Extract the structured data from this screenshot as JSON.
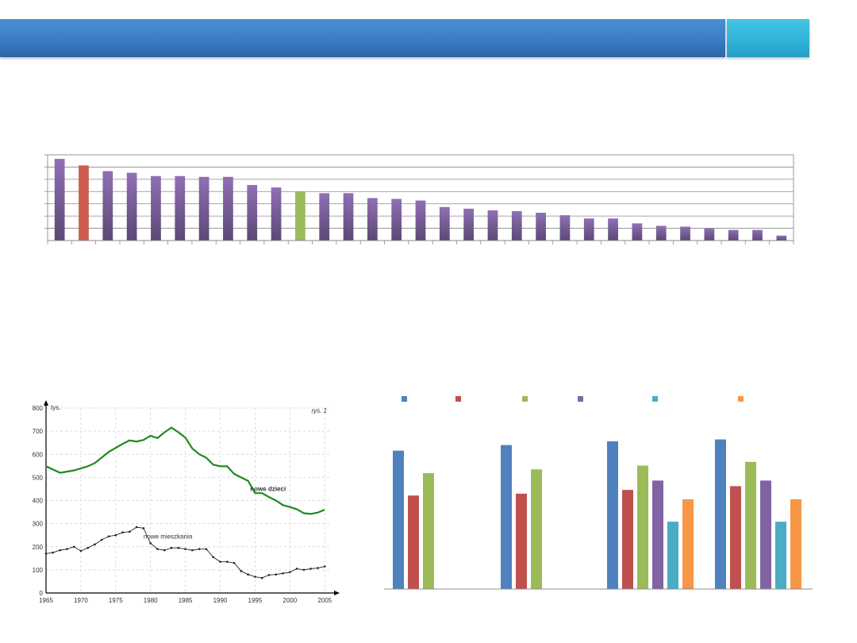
{
  "colors": {
    "banner": "#3a7cc4",
    "banner_accent": "#2fb2d8"
  },
  "chart_data": [
    {
      "type": "bar",
      "values": [
        100,
        92,
        85,
        83,
        79,
        79,
        78,
        78,
        68,
        65,
        60,
        58,
        58,
        52,
        51,
        49,
        41,
        39,
        37,
        36,
        34,
        31,
        27,
        27,
        21,
        18,
        17,
        15,
        13,
        13,
        6
      ],
      "highlight": {
        "1": "#cd5b52",
        "10": "#9bbb59"
      },
      "color": "#8064a2",
      "ylim": [
        0,
        105
      ],
      "grid": true
    },
    {
      "type": "line",
      "xticks": [
        "1965",
        "1970",
        "1975",
        "1980",
        "1985",
        "1990",
        "1995",
        "2000",
        "2005"
      ],
      "yticks": [
        "0",
        "100",
        "200",
        "300",
        "400",
        "500",
        "600",
        "700",
        "800"
      ],
      "xlim": [
        1965,
        2006
      ],
      "ylim": [
        0,
        800
      ],
      "unit_label": "tys.",
      "fig_label": "rys. 1",
      "series": [
        {
          "name": "nowe dzieci",
          "color": "#1f8a1f",
          "x": [
            1965,
            1967,
            1969,
            1971,
            1972,
            1974,
            1976,
            1977,
            1978,
            1979,
            1980,
            1981,
            1982,
            1983,
            1984,
            1985,
            1986,
            1987,
            1988,
            1989,
            1990,
            1991,
            1992,
            1993,
            1994,
            1995,
            1996,
            1997,
            1998,
            1999,
            2000,
            2001,
            2002,
            2003,
            2004,
            2005
          ],
          "y": [
            548,
            520,
            530,
            548,
            562,
            610,
            645,
            660,
            655,
            662,
            680,
            670,
            695,
            715,
            695,
            672,
            625,
            600,
            585,
            555,
            548,
            548,
            515,
            500,
            485,
            432,
            432,
            415,
            400,
            380,
            372,
            362,
            345,
            342,
            348,
            360
          ]
        },
        {
          "name": "nowe mieszkania",
          "color": "#222222",
          "x": [
            1965,
            1966,
            1967,
            1968,
            1969,
            1970,
            1971,
            1972,
            1973,
            1974,
            1975,
            1976,
            1977,
            1978,
            1979,
            1980,
            1981,
            1982,
            1983,
            1984,
            1985,
            1986,
            1987,
            1988,
            1989,
            1990,
            1991,
            1992,
            1993,
            1994,
            1995,
            1996,
            1997,
            1998,
            1999,
            2000,
            2001,
            2002,
            2003,
            2004,
            2005
          ],
          "y": [
            170,
            175,
            185,
            190,
            200,
            182,
            195,
            210,
            230,
            245,
            250,
            262,
            265,
            285,
            280,
            215,
            190,
            185,
            195,
            195,
            190,
            185,
            190,
            190,
            155,
            135,
            135,
            130,
            95,
            80,
            70,
            65,
            78,
            80,
            85,
            90,
            105,
            100,
            105,
            108,
            115
          ]
        }
      ]
    },
    {
      "type": "bar",
      "groups": 4,
      "series": [
        {
          "color": "#4f81bd",
          "values": [
            7.4,
            7.7,
            7.9,
            8.0
          ]
        },
        {
          "color": "#c0504d",
          "values": [
            5.0,
            5.1,
            5.3,
            5.5
          ]
        },
        {
          "color": "#9bbb59",
          "values": [
            6.2,
            6.4,
            6.6,
            6.8
          ]
        },
        {
          "color": "#8064a2",
          "values": [
            null,
            null,
            5.8,
            5.8
          ]
        },
        {
          "color": "#4bacc6",
          "values": [
            null,
            null,
            3.6,
            3.6
          ]
        },
        {
          "color": "#f79646",
          "values": [
            null,
            null,
            4.8,
            4.8
          ]
        }
      ],
      "ylim": [
        0,
        9
      ],
      "legend": "top"
    }
  ]
}
